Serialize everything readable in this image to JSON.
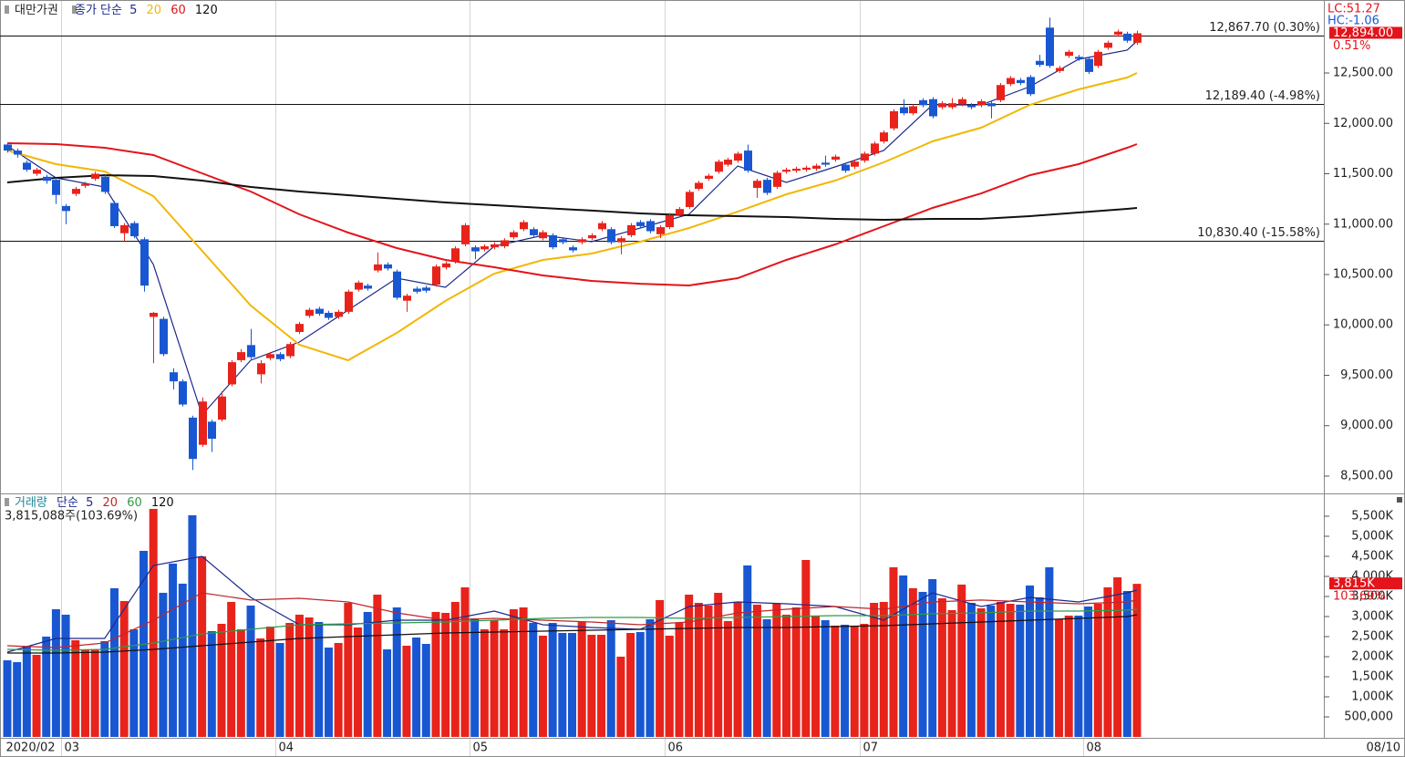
{
  "chart_data": [
    {
      "type": "candlestick",
      "name": "대만가권",
      "ma_label": "종가 단순",
      "categories": [
        "2020/02",
        null,
        null,
        null,
        null,
        null,
        "03",
        null,
        null,
        null,
        null,
        null,
        null,
        null,
        null,
        null,
        null,
        null,
        null,
        null,
        null,
        null,
        null,
        null,
        null,
        null,
        null,
        null,
        "04",
        null,
        null,
        null,
        null,
        null,
        null,
        null,
        null,
        null,
        null,
        null,
        null,
        null,
        null,
        null,
        null,
        null,
        null,
        null,
        "05",
        null,
        null,
        null,
        null,
        null,
        null,
        null,
        null,
        null,
        null,
        null,
        null,
        null,
        null,
        null,
        null,
        null,
        null,
        null,
        "06",
        null,
        null,
        null,
        null,
        null,
        null,
        null,
        null,
        null,
        null,
        null,
        null,
        null,
        null,
        null,
        null,
        null,
        null,
        null,
        "07",
        null,
        null,
        null,
        null,
        null,
        null,
        null,
        null,
        null,
        null,
        null,
        null,
        null,
        null,
        null,
        null,
        null,
        null,
        null,
        null,
        null,
        null,
        "08",
        null,
        null,
        null,
        null,
        null
      ],
      "open": [
        11790,
        11730,
        11610,
        11500,
        11470,
        11440,
        11180,
        11300,
        11380,
        11450,
        11470,
        11210,
        10910,
        11010,
        10850,
        10080,
        10060,
        9530,
        9440,
        9080,
        8810,
        9040,
        9060,
        9410,
        9650,
        9800,
        9510,
        9670,
        9710,
        9690,
        9930,
        10090,
        10160,
        10120,
        10080,
        10130,
        10350,
        10390,
        10540,
        10600,
        10530,
        10240,
        10360,
        10370,
        10400,
        10570,
        10630,
        10800,
        10770,
        10750,
        10770,
        10780,
        10870,
        10950,
        10950,
        10860,
        10890,
        10850,
        10770,
        10820,
        10860,
        10950,
        10950,
        10820,
        10890,
        11020,
        11030,
        10900,
        10970,
        11090,
        11170,
        11350,
        11450,
        11520,
        11590,
        11630,
        11730,
        11360,
        11440,
        11370,
        11520,
        11530,
        11540,
        11550,
        11610,
        11640,
        11590,
        11570,
        11630,
        11700,
        11820,
        11950,
        12160,
        12100,
        12230,
        12240,
        12160,
        12160,
        12190,
        12180,
        12180,
        12200,
        12230,
        12390,
        12430,
        12460,
        12620,
        12950,
        12520,
        12670,
        12660,
        12640,
        12570,
        12750,
        12880,
        12890,
        12800
      ],
      "high": [
        11810,
        11750,
        11630,
        11560,
        11490,
        11460,
        11200,
        11370,
        11420,
        11520,
        11490,
        11230,
        11010,
        11030,
        10870,
        10130,
        10080,
        9570,
        9460,
        9100,
        9280,
        9060,
        9340,
        9650,
        9760,
        9960,
        9650,
        9730,
        9730,
        9830,
        10030,
        10170,
        10180,
        10140,
        10150,
        10350,
        10440,
        10410,
        10720,
        10620,
        10550,
        10310,
        10380,
        10390,
        10600,
        10630,
        10780,
        11010,
        10790,
        10800,
        10820,
        10860,
        10940,
        11040,
        10970,
        10940,
        10910,
        10870,
        10790,
        10870,
        10910,
        11030,
        10970,
        10880,
        11010,
        11040,
        11050,
        10990,
        11110,
        11170,
        11340,
        11430,
        11500,
        11640,
        11660,
        11720,
        11790,
        11450,
        11460,
        11530,
        11560,
        11570,
        11580,
        11600,
        11680,
        11690,
        11610,
        11640,
        11720,
        11820,
        11930,
        12140,
        12240,
        12190,
        12250,
        12260,
        12220,
        12250,
        12260,
        12200,
        12240,
        12220,
        12400,
        12470,
        12450,
        12480,
        12680,
        13050,
        12570,
        12730,
        12680,
        12660,
        12730,
        12820,
        12930,
        12910,
        12920
      ],
      "low": [
        11710,
        11660,
        11520,
        11480,
        11400,
        11200,
        11000,
        11280,
        11360,
        11430,
        11300,
        10960,
        10830,
        10860,
        10330,
        9620,
        9690,
        9360,
        9190,
        8560,
        8790,
        8740,
        9040,
        9390,
        9630,
        9660,
        9420,
        9650,
        9640,
        9670,
        9910,
        10070,
        10090,
        10050,
        10060,
        10110,
        10330,
        10340,
        10520,
        10540,
        10250,
        10130,
        10310,
        10320,
        10380,
        10550,
        10610,
        10780,
        10650,
        10730,
        10750,
        10760,
        10850,
        10930,
        10870,
        10840,
        10750,
        10800,
        10720,
        10800,
        10840,
        10930,
        10800,
        10700,
        10870,
        10960,
        10910,
        10860,
        10950,
        11070,
        11150,
        11330,
        11430,
        11500,
        11570,
        11610,
        11510,
        11260,
        11290,
        11350,
        11500,
        11510,
        11520,
        11530,
        11570,
        11620,
        11510,
        11550,
        11610,
        11680,
        11800,
        11930,
        12080,
        12080,
        12160,
        12050,
        12140,
        12140,
        12170,
        12140,
        12160,
        12050,
        12210,
        12370,
        12380,
        12270,
        12560,
        12550,
        12500,
        12650,
        12620,
        12490,
        12550,
        12730,
        12860,
        12800,
        12780
      ],
      "close": [
        11730,
        11690,
        11540,
        11540,
        11430,
        11290,
        11130,
        11350,
        11400,
        11500,
        11320,
        10980,
        10990,
        10880,
        10390,
        10120,
        9710,
        9440,
        9210,
        8670,
        9240,
        8870,
        9290,
        9630,
        9730,
        9680,
        9620,
        9710,
        9660,
        9810,
        10010,
        10150,
        10110,
        10070,
        10130,
        10330,
        10420,
        10360,
        10600,
        10560,
        10270,
        10290,
        10330,
        10340,
        10580,
        10610,
        10760,
        10990,
        10730,
        10780,
        10800,
        10840,
        10920,
        11020,
        10890,
        10920,
        10770,
        10820,
        10740,
        10850,
        10890,
        11010,
        10820,
        10860,
        10990,
        10980,
        10930,
        10970,
        11090,
        11150,
        11320,
        11410,
        11480,
        11620,
        11640,
        11700,
        11530,
        11430,
        11310,
        11510,
        11540,
        11550,
        11560,
        11580,
        11590,
        11670,
        11530,
        11620,
        11700,
        11800,
        11910,
        12120,
        12100,
        12170,
        12180,
        12070,
        12200,
        12200,
        12240,
        12160,
        12220,
        12170,
        12380,
        12450,
        12400,
        12290,
        12580,
        12570,
        12550,
        12710,
        12640,
        12510,
        12710,
        12800,
        12910,
        12820,
        12894
      ],
      "up_color": "#e8231b",
      "down_color": "#1957d2",
      "ylim": [
        8337,
        13206
      ],
      "yticks": [
        {
          "value": 8500,
          "label": "8,500.00"
        },
        {
          "value": 9000,
          "label": "9,000.00"
        },
        {
          "value": 9500,
          "label": "9,500.00"
        },
        {
          "value": 10000,
          "label": "10,000.00"
        },
        {
          "value": 10500,
          "label": "10,500.00"
        },
        {
          "value": 11000,
          "label": "11,000.00"
        },
        {
          "value": 11500,
          "label": "11,500.00"
        },
        {
          "value": 12000,
          "label": "12,000.00"
        },
        {
          "value": 12500,
          "label": "12,500.00"
        }
      ],
      "ma_x": [
        0,
        5,
        10,
        15,
        20,
        25,
        30,
        35,
        40,
        45,
        50,
        55,
        60,
        65,
        70,
        75,
        80,
        85,
        90,
        95,
        100,
        105,
        110,
        115,
        116
      ],
      "ma": [
        {
          "name": "5",
          "color": "#1c2a8c",
          "values": [
            11776,
            11459,
            11369,
            10600,
            9106,
            9649,
            9830,
            10147,
            10464,
            10373,
            10780,
            10889,
            10826,
            10962,
            11097,
            11577,
            11414,
            11568,
            11731,
            12183,
            12183,
            12364,
            12636,
            12726,
            12817
          ]
        },
        {
          "name": "20",
          "color": "#f2b705",
          "values": [
            11731,
            11595,
            11523,
            11278,
            10735,
            10192,
            9803,
            9649,
            9921,
            10238,
            10509,
            10645,
            10708,
            10826,
            10962,
            11124,
            11296,
            11432,
            11613,
            11821,
            11957,
            12183,
            12337,
            12455,
            12500
          ]
        },
        {
          "name": "60",
          "color": "#e3141b",
          "values": [
            11803,
            11794,
            11758,
            11686,
            11505,
            11324,
            11097,
            10916,
            10762,
            10645,
            10572,
            10491,
            10437,
            10409,
            10391,
            10464,
            10645,
            10799,
            10980,
            11161,
            11305,
            11486,
            11595,
            11758,
            11794
          ]
        },
        {
          "name": "120",
          "color": "#111111",
          "values": [
            11414,
            11459,
            11486,
            11477,
            11432,
            11369,
            11324,
            11287,
            11251,
            11215,
            11188,
            11161,
            11134,
            11106,
            11088,
            11079,
            11070,
            11052,
            11043,
            11052,
            11052,
            11079,
            11115,
            11152,
            11161
          ]
        }
      ],
      "ref_lines": [
        {
          "value": 12867.7,
          "label": "12,867.70 (0.30%)"
        },
        {
          "value": 12189.4,
          "label": "12,189.40 (-4.98%)"
        },
        {
          "value": 10830.4,
          "label": "10,830.40 (-15.58%)"
        }
      ],
      "lc_label": "LC:51.27",
      "hc_label": "HC:-1.06",
      "last_price": {
        "value": 12894,
        "label": "12,894.00"
      },
      "change_label": "0.51%",
      "x_end_label": "08/10"
    },
    {
      "type": "volume-bar",
      "name": "거래량",
      "ma_label": "단순",
      "values": [
        1909000,
        1864000,
        2250000,
        2045000,
        2500000,
        3182000,
        3046000,
        2409000,
        2182000,
        2182000,
        2386000,
        3705000,
        3387000,
        2682000,
        4637000,
        5682000,
        3591000,
        4319000,
        3819000,
        5523000,
        4500000,
        2637000,
        2818000,
        3364000,
        2682000,
        3273000,
        2455000,
        2750000,
        2341000,
        2841000,
        3046000,
        2977000,
        2864000,
        2227000,
        2341000,
        3341000,
        2727000,
        3114000,
        3546000,
        2182000,
        3227000,
        2273000,
        2477000,
        2318000,
        3114000,
        3091000,
        3364000,
        3727000,
        2955000,
        2682000,
        2909000,
        2682000,
        3182000,
        3227000,
        2841000,
        2523000,
        2841000,
        2591000,
        2591000,
        2864000,
        2545000,
        2545000,
        2909000,
        2000000,
        2591000,
        2614000,
        2932000,
        3409000,
        2523000,
        2841000,
        3546000,
        3341000,
        3273000,
        3591000,
        2886000,
        3364000,
        4273000,
        3296000,
        2932000,
        3318000,
        3046000,
        3227000,
        4409000,
        3000000,
        2909000,
        2773000,
        2796000,
        2773000,
        2818000,
        3341000,
        3364000,
        4227000,
        4023000,
        3705000,
        3614000,
        3932000,
        3455000,
        3159000,
        3796000,
        3341000,
        3205000,
        3273000,
        3364000,
        3318000,
        3296000,
        3773000,
        3477000,
        4227000,
        2932000,
        3023000,
        3023000,
        3250000,
        3318000,
        3727000,
        3977000,
        3636000,
        3815088
      ],
      "ylim": [
        0,
        6045000
      ],
      "yticks": [
        {
          "value": 500000,
          "label": "500,000"
        },
        {
          "value": 1000000,
          "label": "1,000K"
        },
        {
          "value": 1500000,
          "label": "1,500K"
        },
        {
          "value": 2000000,
          "label": "2,000K"
        },
        {
          "value": 2500000,
          "label": "2,500K"
        },
        {
          "value": 3000000,
          "label": "3,000K"
        },
        {
          "value": 3500000,
          "label": "3,500K"
        },
        {
          "value": 4000000,
          "label": "4,000K"
        },
        {
          "value": 4500000,
          "label": "4,500K"
        },
        {
          "value": 5000000,
          "label": "5,000K"
        },
        {
          "value": 5500000,
          "label": "5,500K"
        }
      ],
      "ma_x": [
        0,
        5,
        10,
        15,
        20,
        25,
        30,
        35,
        40,
        45,
        50,
        55,
        60,
        65,
        70,
        75,
        80,
        85,
        90,
        95,
        100,
        105,
        110,
        115,
        116
      ],
      "ma": [
        {
          "name": "5",
          "color": "#1c2a8c",
          "values": [
            2114000,
            2455000,
            2455000,
            4273000,
            4500000,
            3478000,
            2796000,
            2796000,
            2909000,
            2909000,
            3137000,
            2796000,
            2728000,
            2682000,
            3250000,
            3364000,
            3319000,
            3250000,
            2909000,
            3591000,
            3250000,
            3478000,
            3364000,
            3591000,
            3659000
          ]
        },
        {
          "name": "20",
          "color": "#c0262c",
          "values": [
            2273000,
            2227000,
            2341000,
            2909000,
            3591000,
            3410000,
            3455000,
            3364000,
            3091000,
            2909000,
            2955000,
            2909000,
            2864000,
            2796000,
            2864000,
            3091000,
            3182000,
            3250000,
            3182000,
            3364000,
            3410000,
            3364000,
            3319000,
            3364000,
            3410000
          ]
        },
        {
          "name": "60",
          "color": "#2e9c46",
          "values": [
            2182000,
            2159000,
            2182000,
            2341000,
            2568000,
            2682000,
            2796000,
            2818000,
            2841000,
            2864000,
            2909000,
            2955000,
            2978000,
            2978000,
            2955000,
            2978000,
            3000000,
            3023000,
            3023000,
            3068000,
            3091000,
            3137000,
            3137000,
            3159000,
            3182000
          ]
        },
        {
          "name": "120",
          "color": "#111111",
          "values": [
            2091000,
            2091000,
            2114000,
            2182000,
            2273000,
            2364000,
            2455000,
            2500000,
            2546000,
            2591000,
            2614000,
            2637000,
            2660000,
            2682000,
            2705000,
            2728000,
            2728000,
            2750000,
            2773000,
            2818000,
            2864000,
            2909000,
            2955000,
            3000000,
            3046000
          ]
        }
      ],
      "summary": "3,815,088주(103.69%)",
      "last_volume": {
        "value": 3815088,
        "label": "3,815K"
      },
      "ratio_label": "103.69%"
    }
  ]
}
